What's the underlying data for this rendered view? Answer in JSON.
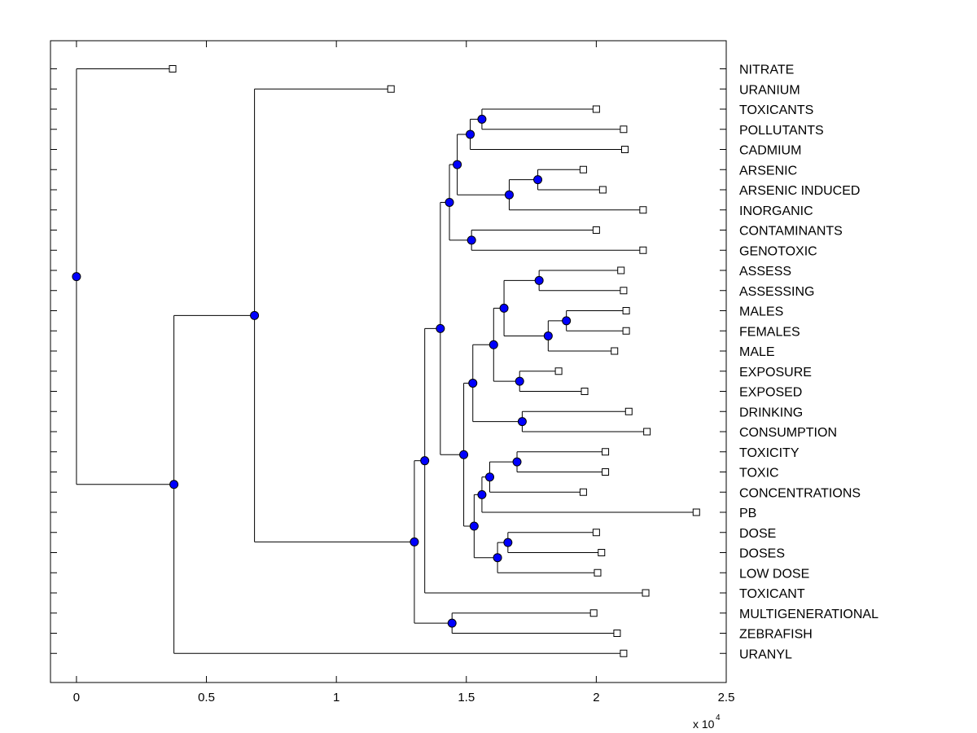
{
  "chart_data": {
    "type": "dendrogram",
    "title": "",
    "xlabel": "",
    "ylabel": "",
    "xlim": [
      -0.1,
      2.5
    ],
    "x_ticks": [
      0,
      0.5,
      1,
      1.5,
      2,
      2.5
    ],
    "x_tick_labels": [
      "0",
      "0.5",
      "1",
      "1.5",
      "2",
      "2.5"
    ],
    "x_multiplier_base": "x 10",
    "x_multiplier_exponent": "4",
    "colors": {
      "node": "#0000ff",
      "leaf": "#ffffff",
      "line": "#000000"
    },
    "leaves": [
      {
        "id": "NITRATE",
        "label": "NITRATE",
        "x": 0.37
      },
      {
        "id": "URANIUM",
        "label": "URANIUM",
        "x": 1.21
      },
      {
        "id": "TOXICANTS",
        "label": "TOXICANTS",
        "x": 2.0
      },
      {
        "id": "POLLUTANTS",
        "label": "POLLUTANTS",
        "x": 2.105
      },
      {
        "id": "CADMIUM",
        "label": "CADMIUM",
        "x": 2.11
      },
      {
        "id": "ARSENIC",
        "label": "ARSENIC",
        "x": 1.95
      },
      {
        "id": "ARSENIC_INDUCED",
        "label": "ARSENIC INDUCED",
        "x": 2.025
      },
      {
        "id": "INORGANIC",
        "label": "INORGANIC",
        "x": 2.18
      },
      {
        "id": "CONTAMINANTS",
        "label": "CONTAMINANTS",
        "x": 2.0
      },
      {
        "id": "GENOTOXIC",
        "label": "GENOTOXIC",
        "x": 2.18
      },
      {
        "id": "ASSESS",
        "label": "ASSESS",
        "x": 2.095
      },
      {
        "id": "ASSESSING",
        "label": "ASSESSING",
        "x": 2.105
      },
      {
        "id": "MALES",
        "label": "MALES",
        "x": 2.115
      },
      {
        "id": "FEMALES",
        "label": "FEMALES",
        "x": 2.115
      },
      {
        "id": "MALE",
        "label": "MALE",
        "x": 2.07
      },
      {
        "id": "EXPOSURE",
        "label": "EXPOSURE",
        "x": 1.855
      },
      {
        "id": "EXPOSED",
        "label": "EXPOSED",
        "x": 1.955
      },
      {
        "id": "DRINKING",
        "label": "DRINKING",
        "x": 2.125
      },
      {
        "id": "CONSUMPTION",
        "label": "CONSUMPTION",
        "x": 2.195
      },
      {
        "id": "TOXICITY",
        "label": "TOXICITY",
        "x": 2.035
      },
      {
        "id": "TOXIC",
        "label": "TOXIC",
        "x": 2.035
      },
      {
        "id": "CONCENTRATIONS",
        "label": "CONCENTRATIONS",
        "x": 1.95
      },
      {
        "id": "PB",
        "label": "PB",
        "x": 2.385
      },
      {
        "id": "DOSE",
        "label": "DOSE",
        "x": 2.0
      },
      {
        "id": "DOSES",
        "label": "DOSES",
        "x": 2.02
      },
      {
        "id": "LOW_DOSE",
        "label": "LOW DOSE",
        "x": 2.005
      },
      {
        "id": "TOXICANT",
        "label": "TOXICANT",
        "x": 2.19
      },
      {
        "id": "MULTIGENERATIONAL",
        "label": "MULTIGENERATIONAL",
        "x": 1.99
      },
      {
        "id": "ZEBRAFISH",
        "label": "ZEBRAFISH",
        "x": 2.08
      },
      {
        "id": "URANYL",
        "label": "URANYL",
        "x": 2.105
      }
    ],
    "merges": [
      {
        "id": "n_tox_pol",
        "x": 1.56,
        "children": [
          "TOXICANTS",
          "POLLUTANTS"
        ]
      },
      {
        "id": "n_cad",
        "x": 1.515,
        "children": [
          "n_tox_pol",
          "CADMIUM"
        ]
      },
      {
        "id": "n_ars",
        "x": 1.775,
        "children": [
          "ARSENIC",
          "ARSENIC_INDUCED"
        ]
      },
      {
        "id": "n_inorg",
        "x": 1.665,
        "children": [
          "n_ars",
          "INORGANIC"
        ]
      },
      {
        "id": "n_g1",
        "x": 1.465,
        "children": [
          "n_cad",
          "n_inorg"
        ]
      },
      {
        "id": "n_cont",
        "x": 1.52,
        "children": [
          "CONTAMINANTS",
          "GENOTOXIC"
        ]
      },
      {
        "id": "n_g2",
        "x": 1.435,
        "children": [
          "n_g1",
          "n_cont"
        ]
      },
      {
        "id": "n_assess",
        "x": 1.78,
        "children": [
          "ASSESS",
          "ASSESSING"
        ]
      },
      {
        "id": "n_males",
        "x": 1.885,
        "children": [
          "MALES",
          "FEMALES"
        ]
      },
      {
        "id": "n_male",
        "x": 1.815,
        "children": [
          "n_males",
          "MALE"
        ]
      },
      {
        "id": "n_g3",
        "x": 1.645,
        "children": [
          "n_assess",
          "n_male"
        ]
      },
      {
        "id": "n_expo",
        "x": 1.705,
        "children": [
          "EXPOSURE",
          "EXPOSED"
        ]
      },
      {
        "id": "n_g4",
        "x": 1.605,
        "children": [
          "n_g3",
          "n_expo"
        ]
      },
      {
        "id": "n_drink",
        "x": 1.715,
        "children": [
          "DRINKING",
          "CONSUMPTION"
        ]
      },
      {
        "id": "n_g5",
        "x": 1.525,
        "children": [
          "n_g4",
          "n_drink"
        ]
      },
      {
        "id": "n_toxic",
        "x": 1.695,
        "children": [
          "TOXICITY",
          "TOXIC"
        ]
      },
      {
        "id": "n_conc",
        "x": 1.59,
        "children": [
          "n_toxic",
          "CONCENTRATIONS"
        ]
      },
      {
        "id": "n_pb",
        "x": 1.56,
        "children": [
          "n_conc",
          "PB"
        ]
      },
      {
        "id": "n_dose",
        "x": 1.66,
        "children": [
          "DOSE",
          "DOSES"
        ]
      },
      {
        "id": "n_low",
        "x": 1.62,
        "children": [
          "n_dose",
          "LOW_DOSE"
        ]
      },
      {
        "id": "n_g6",
        "x": 1.53,
        "children": [
          "n_pb",
          "n_low"
        ]
      },
      {
        "id": "n_g7",
        "x": 1.49,
        "children": [
          "n_g5",
          "n_g6"
        ]
      },
      {
        "id": "n_g8",
        "x": 1.4,
        "children": [
          "n_g2",
          "n_g7"
        ]
      },
      {
        "id": "n_g9",
        "x": 1.34,
        "children": [
          "n_g8",
          "TOXICANT"
        ]
      },
      {
        "id": "n_zeb",
        "x": 1.445,
        "children": [
          "MULTIGENERATIONAL",
          "ZEBRAFISH"
        ]
      },
      {
        "id": "n_g10",
        "x": 1.3,
        "children": [
          "n_g9",
          "n_zeb"
        ]
      },
      {
        "id": "n_g11",
        "x": 0.685,
        "children": [
          "URANIUM",
          "n_g10"
        ]
      },
      {
        "id": "n_g12",
        "x": 0.375,
        "children": [
          "n_g11",
          "URANYL"
        ]
      },
      {
        "id": "n_root",
        "x": 0.0,
        "children": [
          "NITRATE",
          "n_g12"
        ]
      }
    ]
  }
}
